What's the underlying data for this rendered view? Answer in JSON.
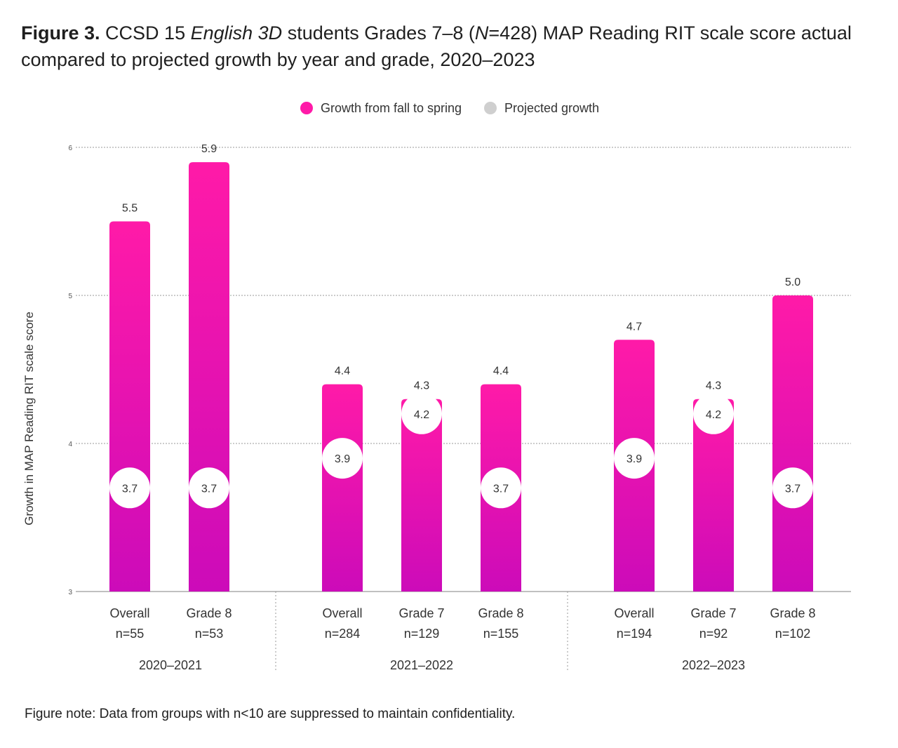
{
  "title": {
    "figure_label": "Figure 3.",
    "part1": "CCSD 15",
    "italic1": "English 3D",
    "part2": "students Grades 7–8 (",
    "italic2": "N",
    "part3": "=428) MAP Reading RIT scale score actual compared to projected growth by year and grade, 2020–2023"
  },
  "note": "Figure note: Data from groups with n<10 are suppressed to maintain confidentiality.",
  "chart_data": {
    "type": "bar",
    "ylabel": "Growth in MAP Reading RIT scale score",
    "ylim": [
      3,
      6
    ],
    "yticks": [
      3,
      4,
      5,
      6
    ],
    "grid": true,
    "legend_position": "top-center",
    "legend": [
      {
        "label": "Growth from fall to spring",
        "color": "#ff1aa8"
      },
      {
        "label": "Projected growth",
        "color": "#cfcfcf"
      }
    ],
    "groups": [
      {
        "name": "2020–2021",
        "bars": [
          {
            "label": "Overall",
            "n": "n=55",
            "actual": 5.5,
            "projected": 3.7
          },
          {
            "label": "Grade 8",
            "n": "n=53",
            "actual": 5.9,
            "projected": 3.7
          }
        ]
      },
      {
        "name": "2021–2022",
        "bars": [
          {
            "label": "Overall",
            "n": "n=284",
            "actual": 4.4,
            "projected": 3.9
          },
          {
            "label": "Grade 7",
            "n": "n=129",
            "actual": 4.3,
            "projected": 4.2
          },
          {
            "label": "Grade 8",
            "n": "n=155",
            "actual": 4.4,
            "projected": 3.7
          }
        ]
      },
      {
        "name": "2022–2023",
        "bars": [
          {
            "label": "Overall",
            "n": "n=194",
            "actual": 4.7,
            "projected": 3.9
          },
          {
            "label": "Grade 7",
            "n": "n=92",
            "actual": 4.3,
            "projected": 4.2
          },
          {
            "label": "Grade 8",
            "n": "n=102",
            "actual": 5.0,
            "projected": 3.7
          }
        ]
      }
    ],
    "colors": {
      "bar_top": "#ff1aa8",
      "bar_bottom": "#cc0bb9",
      "marker": "#ffffff"
    }
  }
}
